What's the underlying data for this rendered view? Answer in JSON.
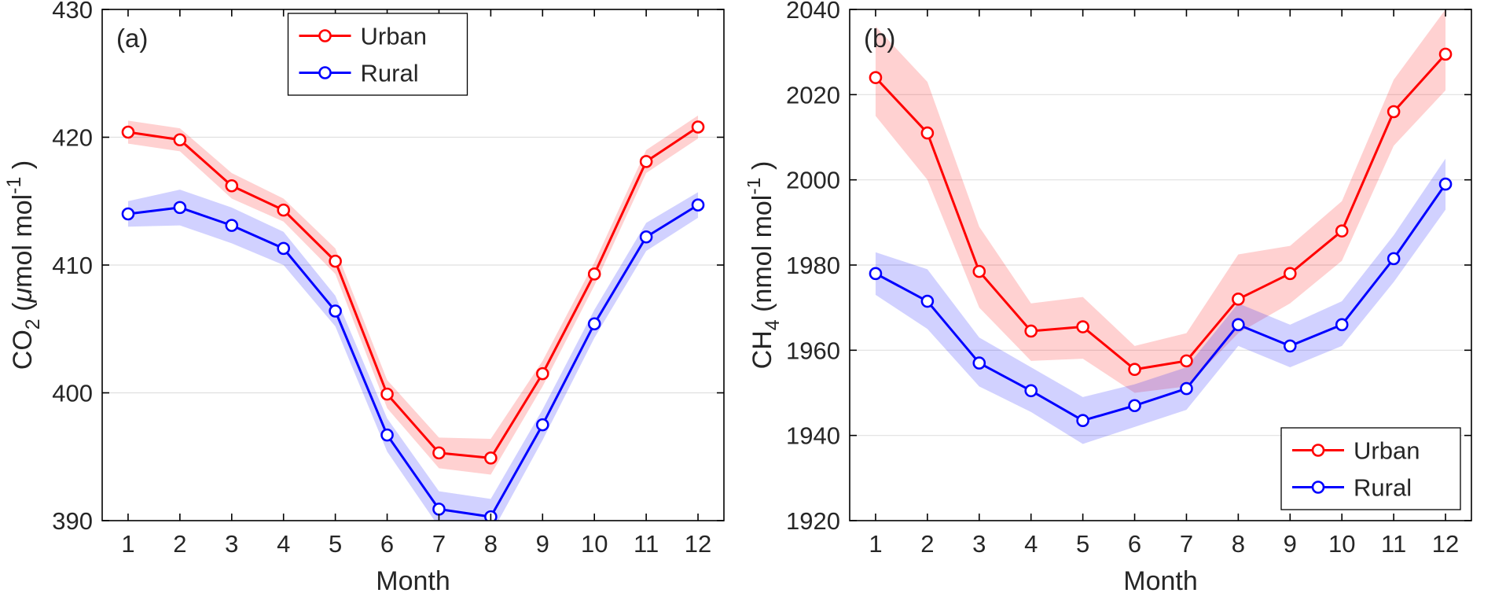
{
  "figure": {
    "background": "#ffffff",
    "grid_color": "#e0e0e0",
    "axis_color": "#000000",
    "text_color": "#262626"
  },
  "chart_data": [
    {
      "type": "line",
      "panel_label": "(a)",
      "xlabel": "Month",
      "ylabel_parts": [
        [
          "CO",
          "normal"
        ],
        [
          "2",
          "sub"
        ],
        [
          " (",
          "normal"
        ],
        [
          "μ",
          "italic"
        ],
        [
          "mol mol",
          "normal"
        ],
        [
          "-1",
          "sup"
        ],
        [
          " )",
          "normal"
        ]
      ],
      "x": [
        1,
        2,
        3,
        4,
        5,
        6,
        7,
        8,
        9,
        10,
        11,
        12
      ],
      "xticks": [
        1,
        2,
        3,
        4,
        5,
        6,
        7,
        8,
        9,
        10,
        11,
        12
      ],
      "xlim": [
        0.5,
        12.5
      ],
      "ylim": [
        390,
        430
      ],
      "yticks": [
        390,
        400,
        410,
        420,
        430
      ],
      "legend": {
        "position": "top-center",
        "entries": [
          "Urban",
          "Rural"
        ]
      },
      "series": [
        {
          "name": "Urban",
          "color": "#FF0000",
          "values": [
            420.4,
            419.8,
            416.2,
            414.3,
            410.3,
            399.9,
            395.3,
            394.9,
            401.5,
            409.3,
            418.1,
            420.8
          ],
          "band_upper": [
            421.3,
            420.7,
            417.2,
            415.2,
            411.3,
            401.0,
            396.5,
            396.4,
            402.5,
            410.2,
            419.0,
            421.7
          ],
          "band_lower": [
            419.5,
            418.9,
            415.2,
            413.4,
            409.3,
            398.8,
            394.1,
            393.6,
            400.5,
            408.4,
            417.2,
            419.9
          ]
        },
        {
          "name": "Rural",
          "color": "#0000FF",
          "values": [
            414.0,
            414.5,
            413.1,
            411.3,
            406.4,
            396.7,
            390.9,
            390.3,
            397.5,
            405.4,
            412.2,
            414.7
          ],
          "band_upper": [
            415.0,
            415.9,
            414.5,
            412.6,
            407.6,
            398.0,
            392.3,
            391.7,
            398.7,
            406.5,
            413.3,
            415.7
          ],
          "band_lower": [
            413.0,
            413.1,
            411.7,
            410.0,
            405.2,
            395.4,
            389.5,
            388.9,
            396.3,
            404.3,
            411.1,
            413.7
          ]
        }
      ]
    },
    {
      "type": "line",
      "panel_label": "(b)",
      "xlabel": "Month",
      "ylabel_parts": [
        [
          "CH",
          "normal"
        ],
        [
          "4",
          "sub"
        ],
        [
          " (nmol mol",
          "normal"
        ],
        [
          "-1",
          "sup"
        ],
        [
          " )",
          "normal"
        ]
      ],
      "x": [
        1,
        2,
        3,
        4,
        5,
        6,
        7,
        8,
        9,
        10,
        11,
        12
      ],
      "xticks": [
        1,
        2,
        3,
        4,
        5,
        6,
        7,
        8,
        9,
        10,
        11,
        12
      ],
      "xlim": [
        0.5,
        12.5
      ],
      "ylim": [
        1920,
        2040
      ],
      "yticks": [
        1920,
        1940,
        1960,
        1980,
        2000,
        2020,
        2040
      ],
      "legend": {
        "position": "bottom-right",
        "entries": [
          "Urban",
          "Rural"
        ]
      },
      "series": [
        {
          "name": "Urban",
          "color": "#FF0000",
          "values": [
            2024,
            2011,
            1978.5,
            1964.5,
            1965.5,
            1955.5,
            1957.5,
            1972,
            1978,
            1988,
            2016,
            2029.5
          ],
          "band_upper": [
            2036,
            2023,
            1989,
            1971,
            1972.5,
            1961,
            1964,
            1982.5,
            1984.5,
            1995,
            2023.5,
            2040
          ],
          "band_lower": [
            2015,
            2000,
            1970,
            1957.5,
            1958,
            1950,
            1951.5,
            1964,
            1971,
            1981,
            2008,
            2021
          ]
        },
        {
          "name": "Rural",
          "color": "#0000FF",
          "values": [
            1978,
            1971.5,
            1957,
            1950.5,
            1943.5,
            1947,
            1951,
            1966,
            1961,
            1966,
            1981.5,
            1999
          ],
          "band_upper": [
            1983,
            1979,
            1963,
            1956,
            1949,
            1952,
            1956,
            1971,
            1966,
            1971.5,
            1987,
            2005
          ],
          "band_lower": [
            1973,
            1965,
            1951.5,
            1945.5,
            1938,
            1942,
            1946,
            1961,
            1956,
            1961,
            1976,
            1993
          ]
        }
      ]
    }
  ]
}
